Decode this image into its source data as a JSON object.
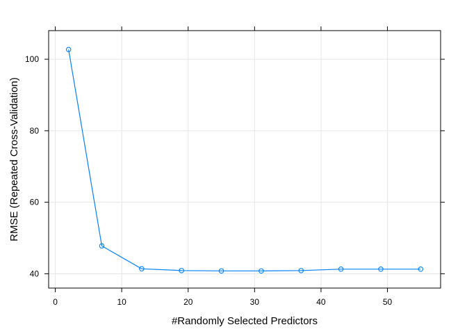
{
  "chart_data": {
    "type": "line",
    "title": "",
    "xlabel": "#Randomly Selected Predictors",
    "ylabel": "RMSE (Repeated Cross-Validation)",
    "xlim": [
      -1,
      58
    ],
    "ylim": [
      36,
      108
    ],
    "xticks": [
      0,
      10,
      20,
      30,
      40,
      50
    ],
    "yticks": [
      40,
      60,
      80,
      100
    ],
    "grid": true,
    "series": [
      {
        "color": "#0080ff",
        "marker": "open-circle",
        "x": [
          2,
          7,
          13,
          19,
          25,
          31,
          37,
          43,
          49,
          55
        ],
        "y": [
          102.7,
          47.8,
          41.4,
          40.9,
          40.8,
          40.8,
          40.9,
          41.3,
          41.3,
          41.3
        ]
      }
    ]
  }
}
